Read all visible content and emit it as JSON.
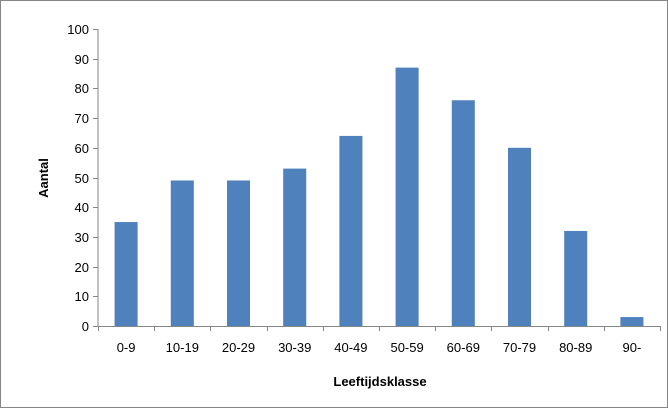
{
  "chart_data": {
    "type": "bar",
    "categories": [
      "0-9",
      "10-19",
      "20-29",
      "30-39",
      "40-49",
      "50-59",
      "60-69",
      "70-79",
      "80-89",
      "90-"
    ],
    "values": [
      35,
      49,
      49,
      53,
      64,
      87,
      76,
      60,
      32,
      3
    ],
    "title": "",
    "xlabel": "Leeftijdsklasse",
    "ylabel": "Aantal",
    "ylim": [
      0,
      100
    ],
    "yticks": [
      0,
      10,
      20,
      30,
      40,
      50,
      60,
      70,
      80,
      90,
      100
    ],
    "grid": false,
    "legend": "none",
    "bar_color": "#4F81BD",
    "axis_color": "#868686"
  }
}
